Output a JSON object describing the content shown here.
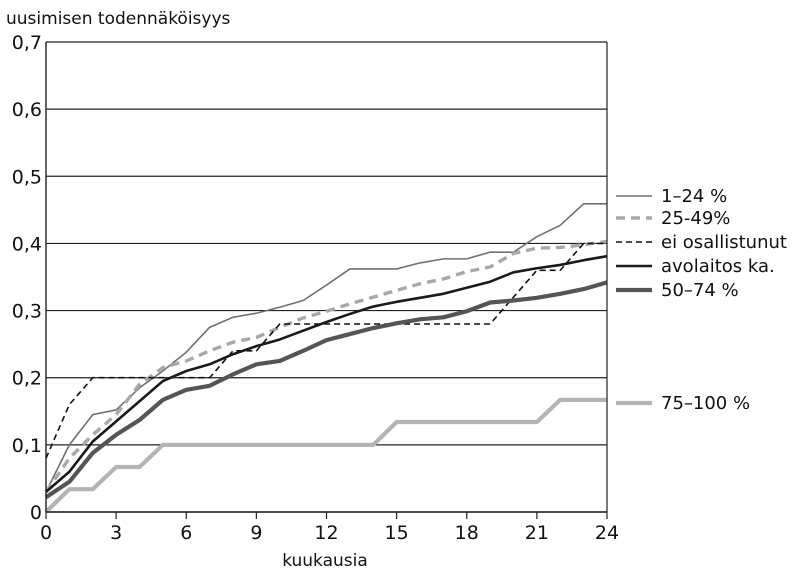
{
  "chart_data": {
    "type": "line",
    "title": "",
    "ylabel": "uusimisen todennäköisyys",
    "xlabel": "kuukausia",
    "xlim": [
      0,
      24
    ],
    "ylim": [
      0,
      0.7
    ],
    "x_ticks": [
      "0",
      "3",
      "6",
      "9",
      "12",
      "15",
      "18",
      "21",
      "24"
    ],
    "y_ticks": [
      "0",
      "0,1",
      "0,2",
      "0,3",
      "0,4",
      "0,5",
      "0,6",
      "0,7"
    ],
    "grid": "horizontal",
    "legend_placement": "right",
    "series": [
      {
        "name": "1–24 %",
        "color": "#707070",
        "style": "solid-thin",
        "x": [
          0,
          1,
          2,
          3,
          4,
          5,
          6,
          7,
          8,
          9,
          10,
          11,
          12,
          13,
          14,
          15,
          16,
          17,
          18,
          19,
          20,
          21,
          22,
          23,
          24
        ],
        "values": [
          0.03,
          0.1,
          0.145,
          0.152,
          0.185,
          0.21,
          0.238,
          0.275,
          0.29,
          0.296,
          0.305,
          0.315,
          0.338,
          0.362,
          0.362,
          0.362,
          0.371,
          0.377,
          0.377,
          0.387,
          0.387,
          0.41,
          0.427,
          0.459,
          0.459
        ]
      },
      {
        "name": "25-49%",
        "color": "#a8a8a8",
        "style": "dashed-thick",
        "x": [
          0,
          1,
          2,
          3,
          4,
          5,
          6,
          7,
          8,
          9,
          10,
          11,
          12,
          13,
          14,
          15,
          16,
          17,
          18,
          19,
          20,
          21,
          22,
          23,
          24
        ],
        "values": [
          0.03,
          0.08,
          0.115,
          0.145,
          0.19,
          0.215,
          0.225,
          0.24,
          0.253,
          0.26,
          0.275,
          0.289,
          0.299,
          0.31,
          0.32,
          0.33,
          0.34,
          0.347,
          0.358,
          0.365,
          0.385,
          0.393,
          0.394,
          0.398,
          0.403
        ]
      },
      {
        "name": "ei osallistunut",
        "color": "#111111",
        "style": "dashed-thin",
        "x": [
          0,
          1,
          2,
          3,
          4,
          5,
          6,
          7,
          8,
          9,
          10,
          11,
          12,
          13,
          14,
          15,
          16,
          17,
          18,
          19,
          20,
          21,
          22,
          23,
          24
        ],
        "values": [
          0.08,
          0.16,
          0.2,
          0.2,
          0.2,
          0.2,
          0.2,
          0.2,
          0.24,
          0.24,
          0.28,
          0.28,
          0.28,
          0.28,
          0.28,
          0.28,
          0.28,
          0.28,
          0.28,
          0.28,
          0.32,
          0.36,
          0.36,
          0.4,
          0.4
        ]
      },
      {
        "name": "avolaitos ka.",
        "color": "#1a1a1a",
        "style": "solid-medium",
        "x": [
          0,
          1,
          2,
          3,
          4,
          5,
          6,
          7,
          8,
          9,
          10,
          11,
          12,
          13,
          14,
          15,
          16,
          17,
          18,
          19,
          20,
          21,
          22,
          23,
          24
        ],
        "values": [
          0.03,
          0.06,
          0.105,
          0.135,
          0.165,
          0.195,
          0.21,
          0.22,
          0.235,
          0.247,
          0.257,
          0.27,
          0.283,
          0.295,
          0.306,
          0.313,
          0.319,
          0.325,
          0.334,
          0.343,
          0.357,
          0.363,
          0.368,
          0.375,
          0.381
        ]
      },
      {
        "name": "50–74 %",
        "color": "#555555",
        "style": "solid-thick",
        "x": [
          0,
          1,
          2,
          3,
          4,
          5,
          6,
          7,
          8,
          9,
          10,
          11,
          12,
          13,
          14,
          15,
          16,
          17,
          18,
          19,
          20,
          21,
          22,
          23,
          24
        ],
        "values": [
          0.022,
          0.045,
          0.088,
          0.115,
          0.137,
          0.167,
          0.182,
          0.188,
          0.205,
          0.22,
          0.225,
          0.24,
          0.256,
          0.265,
          0.274,
          0.281,
          0.287,
          0.29,
          0.299,
          0.312,
          0.315,
          0.319,
          0.325,
          0.332,
          0.342
        ]
      },
      {
        "name": "75–100 %",
        "color": "#b4b4b4",
        "style": "solid-thick",
        "x": [
          0,
          1,
          2,
          3,
          4,
          5,
          6,
          7,
          8,
          9,
          10,
          11,
          12,
          13,
          14,
          15,
          16,
          17,
          18,
          19,
          20,
          21,
          22,
          23,
          24
        ],
        "values": [
          0.0,
          0.034,
          0.034,
          0.067,
          0.067,
          0.1,
          0.1,
          0.1,
          0.1,
          0.1,
          0.1,
          0.1,
          0.1,
          0.1,
          0.1,
          0.134,
          0.134,
          0.134,
          0.134,
          0.134,
          0.134,
          0.134,
          0.167,
          0.167,
          0.167
        ]
      }
    ]
  }
}
